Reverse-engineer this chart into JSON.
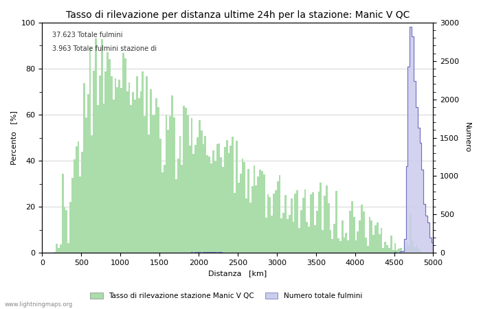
{
  "title": "Tasso di rilevazione per distanza ultime 24h per la stazione: Manic V QC",
  "xlabel": "Distanza   [km]",
  "ylabel_left": "Percento   [%]",
  "ylabel_right": "Numero",
  "annotation_line1": "37.623 Totale fulmini",
  "annotation_line2": "3.963 Totale fulmini stazione di",
  "legend_green": "Tasso di rilevazione stazione Manic V QC",
  "legend_blue": "Numero totale fulmini",
  "watermark": "www.lightningmaps.org",
  "xlim": [
    0,
    5000
  ],
  "ylim_left": [
    0,
    100
  ],
  "ylim_right": [
    0,
    3000
  ],
  "xticks": [
    0,
    500,
    1000,
    1500,
    2000,
    2500,
    3000,
    3500,
    4000,
    4500,
    5000
  ],
  "yticks_left": [
    0,
    20,
    40,
    60,
    80,
    100
  ],
  "yticks_right": [
    0,
    500,
    1000,
    1500,
    2000,
    2500,
    3000
  ],
  "background_color": "#ffffff",
  "grid_color": "#aaaaaa",
  "bar_color": "#aaddaa",
  "area_color": "#ccccee",
  "line_color": "#6666bb",
  "title_fontsize": 10,
  "axis_fontsize": 8,
  "tick_fontsize": 8,
  "figsize": [
    7.0,
    4.5
  ],
  "dpi": 100
}
